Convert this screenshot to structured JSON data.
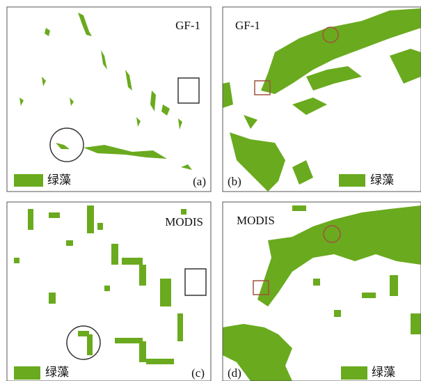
{
  "panels": [
    {
      "sensor": "GF-1",
      "label": "(a)",
      "legend": "绿藻"
    },
    {
      "sensor": "GF-1",
      "label": "(b)",
      "legend": "绿藻"
    },
    {
      "sensor": "MODIS",
      "label": "(c)",
      "legend": "绿藻"
    },
    {
      "sensor": "MODIS",
      "label": "(d)",
      "legend": "绿藻"
    }
  ]
}
